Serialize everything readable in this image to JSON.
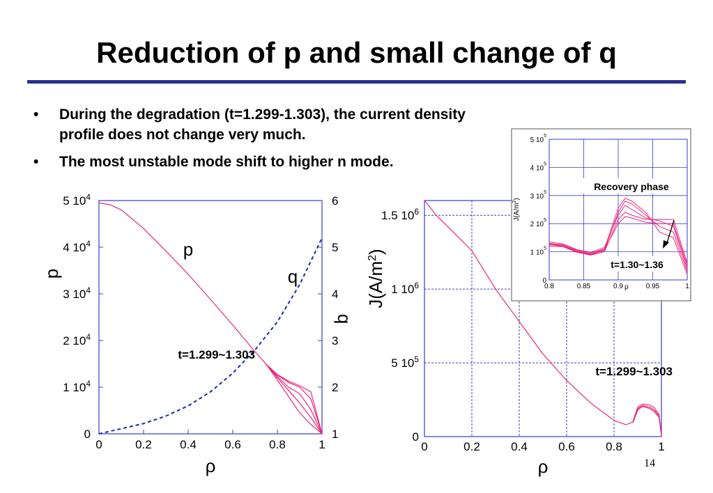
{
  "slide": {
    "title": "Reduction of p and small change of q",
    "bullets": [
      {
        "marker": "•",
        "text": "During the degradation (t=1.299-1.303), the current density profile does not change very much."
      },
      {
        "marker": "•",
        "text": "The most unstable mode shift to higher n mode."
      }
    ],
    "page_number": "14"
  },
  "colors": {
    "title_rule": "#2b2f8f",
    "pressure_curves": "#e8287a",
    "q_curve": "#1a2ab8",
    "axes": "#3a3ad0"
  },
  "chart_data": [
    {
      "type": "line",
      "xlabel": "ρ",
      "ylabel": "p",
      "y2label": "q",
      "xlim": [
        0,
        1
      ],
      "ylim": [
        0,
        50000
      ],
      "y2lim": [
        1,
        6
      ],
      "x_ticks": [
        "0",
        "0.2",
        "0.4",
        "0.6",
        "0.8",
        "1"
      ],
      "y_ticks": [
        {
          "value": 0,
          "base": "0",
          "sup": ""
        },
        {
          "value": 10000,
          "base": "1 10",
          "sup": "4"
        },
        {
          "value": 20000,
          "base": "2 10",
          "sup": "4"
        },
        {
          "value": 30000,
          "base": "3 10",
          "sup": "4"
        },
        {
          "value": 40000,
          "base": "4 10",
          "sup": "4"
        },
        {
          "value": 50000,
          "base": "5 10",
          "sup": "4"
        }
      ],
      "y2_ticks": [
        "1",
        "2",
        "3",
        "4",
        "5",
        "6"
      ],
      "annotations": {
        "p_label": "p",
        "q_label": "q",
        "time_label": "t=1.299~1.303"
      },
      "series": [
        {
          "axis": "left",
          "style": "solid",
          "x": [
            0,
            0.05,
            0.1,
            0.2,
            0.3,
            0.4,
            0.5,
            0.6,
            0.7,
            0.75,
            0.8,
            0.85,
            0.9,
            0.95,
            1.0
          ],
          "y": [
            49500,
            49100,
            48000,
            44000,
            39200,
            34200,
            28800,
            23300,
            17600,
            14900,
            11500,
            8000,
            4500,
            2000,
            0
          ]
        },
        {
          "axis": "left",
          "style": "solid",
          "x": [
            0.75,
            0.8,
            0.85,
            0.9,
            0.95,
            1.0
          ],
          "y": [
            14900,
            12300,
            10000,
            8600,
            5200,
            0
          ]
        },
        {
          "axis": "left",
          "style": "solid",
          "x": [
            0.75,
            0.8,
            0.85,
            0.9,
            0.95,
            1.0
          ],
          "y": [
            14900,
            12600,
            11000,
            10000,
            7500,
            0
          ]
        },
        {
          "axis": "left",
          "style": "solid",
          "x": [
            0.75,
            0.8,
            0.85,
            0.9,
            0.95,
            1.0
          ],
          "y": [
            14900,
            12700,
            11300,
            10300,
            9000,
            0
          ]
        },
        {
          "axis": "left",
          "style": "solid",
          "x": [
            0.75,
            0.8,
            0.85,
            0.9,
            0.95,
            1.0
          ],
          "y": [
            14900,
            12000,
            9300,
            6600,
            3500,
            0
          ]
        },
        {
          "axis": "right",
          "style": "dashed",
          "x": [
            0,
            0.1,
            0.2,
            0.3,
            0.4,
            0.5,
            0.6,
            0.7,
            0.8,
            0.9,
            1.0
          ],
          "y": [
            1.0,
            1.11,
            1.22,
            1.38,
            1.6,
            1.9,
            2.3,
            2.8,
            3.4,
            4.2,
            5.2
          ]
        }
      ]
    },
    {
      "type": "line",
      "xlabel": "ρ",
      "ylabel": "J(A/m²)",
      "ylabel_parts": {
        "base": "J(A/m",
        "sup": "2",
        "end": ")"
      },
      "xlim": [
        0,
        1
      ],
      "ylim": [
        0,
        1600000
      ],
      "x_ticks": [
        "0",
        "0.2",
        "0.4",
        "0.6",
        "0.8",
        "1"
      ],
      "y_ticks": [
        {
          "value": 0,
          "base": "0",
          "sup": ""
        },
        {
          "value": 500000,
          "base": "5 10",
          "sup": "5"
        },
        {
          "value": 1000000,
          "base": "1 10",
          "sup": "6"
        },
        {
          "value": 1500000,
          "base": "1.5 10",
          "sup": "6"
        }
      ],
      "grid": true,
      "annotations": {
        "time_label": "t=1.299~1.303"
      },
      "series": [
        {
          "x": [
            0,
            0.05,
            0.1,
            0.2,
            0.3,
            0.4,
            0.5,
            0.6,
            0.7,
            0.8,
            0.85,
            0.88,
            0.9,
            0.92,
            0.95,
            0.97,
            0.99,
            1.0
          ],
          "y": [
            1600000,
            1500000,
            1420000,
            1260000,
            1000000,
            780000,
            560000,
            380000,
            230000,
            110000,
            80000,
            100000,
            190000,
            210000,
            200000,
            180000,
            140000,
            10000
          ]
        },
        {
          "x": [
            0.88,
            0.9,
            0.92,
            0.95,
            0.97,
            0.99,
            1.0
          ],
          "y": [
            105000,
            200000,
            220000,
            215000,
            195000,
            150000,
            10000
          ]
        },
        {
          "x": [
            0.88,
            0.9,
            0.92,
            0.95,
            0.97,
            0.99,
            1.0
          ],
          "y": [
            95000,
            180000,
            205000,
            190000,
            170000,
            130000,
            10000
          ]
        }
      ]
    },
    {
      "type": "line",
      "xlabel": "ρ",
      "ylabel": "J(A/m²)",
      "ylabel_parts": {
        "base": "J(A/m",
        "sup": "2",
        "end": ")"
      },
      "xlim": [
        0.8,
        1
      ],
      "ylim": [
        0,
        500000
      ],
      "x_ticks": [
        "0.8",
        "0.85",
        "0.9",
        "0.95",
        "1"
      ],
      "y_ticks": [
        {
          "value": 0,
          "base": "0",
          "sup": ""
        },
        {
          "value": 100000,
          "base": "1 10",
          "sup": "5"
        },
        {
          "value": 200000,
          "base": "2 10",
          "sup": "5"
        },
        {
          "value": 300000,
          "base": "3 10",
          "sup": "5"
        },
        {
          "value": 400000,
          "base": "4 10",
          "sup": "5"
        },
        {
          "value": 500000,
          "base": "5 10",
          "sup": "5"
        }
      ],
      "grid": true,
      "annotations": {
        "title": "Recovery phase",
        "time_label": "t=1.30~1.36"
      },
      "series": [
        {
          "x": [
            0.8,
            0.82,
            0.84,
            0.86,
            0.88,
            0.9,
            0.91,
            0.92,
            0.94,
            0.96,
            0.98,
            1.0
          ],
          "y": [
            130000,
            125000,
            105000,
            95000,
            110000,
            255000,
            290000,
            280000,
            240000,
            170000,
            150000,
            20000
          ]
        },
        {
          "x": [
            0.8,
            0.82,
            0.84,
            0.86,
            0.88,
            0.9,
            0.91,
            0.92,
            0.94,
            0.96,
            0.98,
            1.0
          ],
          "y": [
            125000,
            120000,
            100000,
            90000,
            105000,
            240000,
            280000,
            270000,
            230000,
            190000,
            170000,
            30000
          ]
        },
        {
          "x": [
            0.8,
            0.82,
            0.84,
            0.86,
            0.88,
            0.9,
            0.91,
            0.92,
            0.94,
            0.96,
            0.98,
            1.0
          ],
          "y": [
            135000,
            128000,
            108000,
            98000,
            115000,
            230000,
            265000,
            250000,
            220000,
            210000,
            190000,
            40000
          ]
        },
        {
          "x": [
            0.8,
            0.82,
            0.84,
            0.86,
            0.88,
            0.9,
            0.91,
            0.92,
            0.94,
            0.96,
            0.98,
            1.0
          ],
          "y": [
            120000,
            118000,
            98000,
            88000,
            100000,
            215000,
            240000,
            230000,
            215000,
            215000,
            215000,
            60000
          ]
        },
        {
          "x": [
            0.8,
            0.82,
            0.84,
            0.86,
            0.88,
            0.9,
            0.91,
            0.92,
            0.94,
            0.96,
            0.98,
            1.0
          ],
          "y": [
            128000,
            122000,
            102000,
            92000,
            108000,
            200000,
            225000,
            220000,
            205000,
            200000,
            200000,
            50000
          ]
        }
      ]
    }
  ]
}
